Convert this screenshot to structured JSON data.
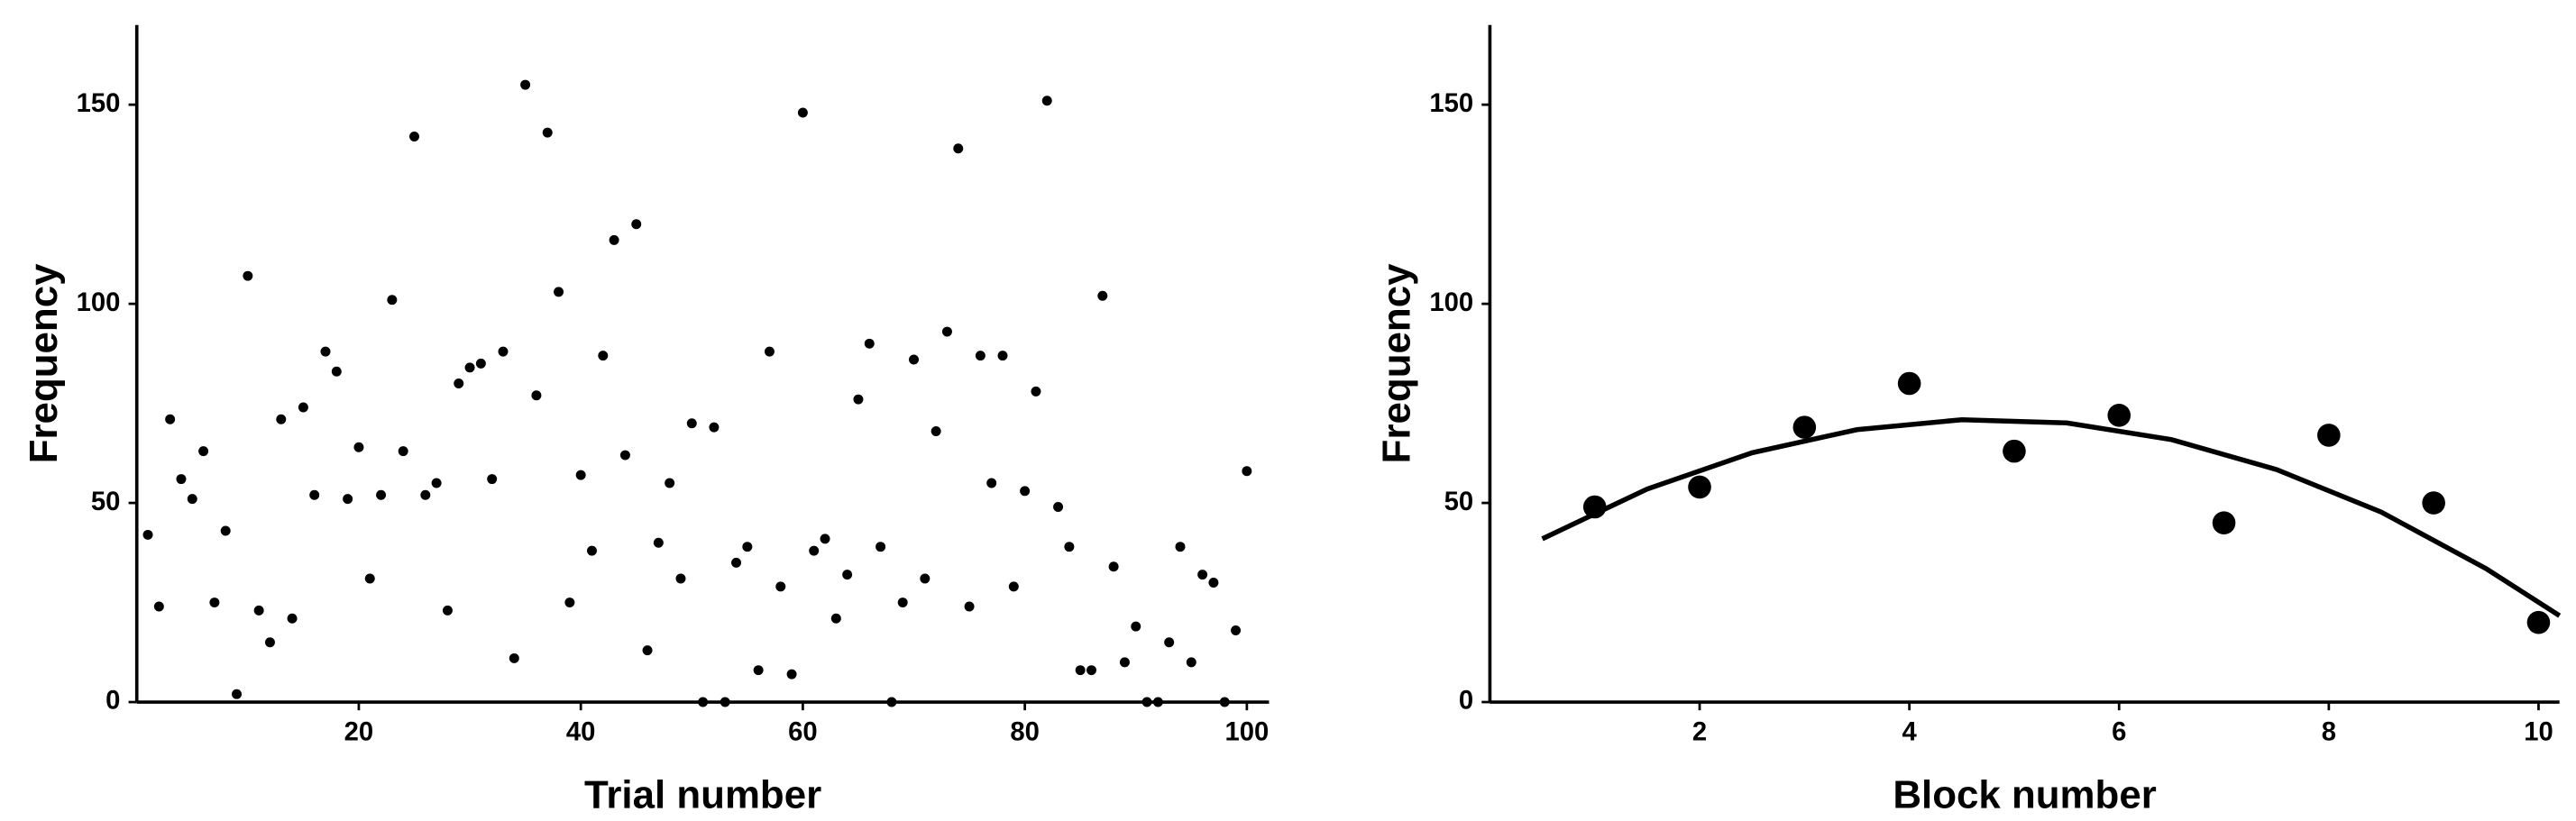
{
  "chart_data": [
    {
      "type": "scatter",
      "xlabel": "Trial number",
      "ylabel": "Frequency",
      "xlim": [
        0,
        102
      ],
      "ylim": [
        0,
        170
      ],
      "xticks": [
        20,
        40,
        60,
        80,
        100
      ],
      "yticks": [
        0,
        50,
        100,
        150
      ],
      "series": [
        {
          "style": "points",
          "color": "#000000",
          "x": [
            1,
            2,
            3,
            4,
            5,
            6,
            7,
            8,
            9,
            10,
            11,
            12,
            13,
            14,
            15,
            16,
            17,
            18,
            19,
            20,
            21,
            22,
            23,
            24,
            25,
            26,
            27,
            28,
            29,
            30,
            31,
            32,
            33,
            34,
            35,
            36,
            37,
            38,
            39,
            40,
            41,
            42,
            43,
            44,
            45,
            46,
            47,
            48,
            49,
            50,
            51,
            52,
            53,
            54,
            55,
            56,
            57,
            58,
            59,
            60,
            61,
            62,
            63,
            64,
            65,
            66,
            67,
            68,
            69,
            70,
            71,
            72,
            73,
            74,
            75,
            76,
            77,
            78,
            79,
            80,
            81,
            82,
            83,
            84,
            85,
            86,
            87,
            88,
            89,
            90,
            91,
            92,
            93,
            94,
            95,
            96,
            97,
            98,
            99,
            100
          ],
          "values": [
            42,
            24,
            71,
            56,
            51,
            63,
            25,
            43,
            2,
            107,
            23,
            15,
            71,
            21,
            74,
            52,
            88,
            83,
            51,
            64,
            31,
            52,
            101,
            63,
            142,
            52,
            55,
            23,
            80,
            84,
            85,
            56,
            88,
            11,
            155,
            77,
            143,
            103,
            25,
            57,
            38,
            87,
            116,
            62,
            120,
            13,
            40,
            55,
            31,
            70,
            0,
            69,
            0,
            35,
            39,
            8,
            88,
            29,
            7,
            148,
            38,
            41,
            21,
            32,
            76,
            90,
            39,
            0,
            25,
            86,
            31,
            68,
            93,
            139,
            24,
            87,
            55,
            87,
            29,
            53,
            78,
            151,
            49,
            39,
            8,
            8,
            102,
            34,
            10,
            19,
            0,
            0,
            15,
            39,
            10,
            32,
            30,
            0,
            18,
            58
          ]
        }
      ]
    },
    {
      "type": "scatter",
      "xlabel": "Block number",
      "ylabel": "Frequency",
      "xlim": [
        0,
        10.2
      ],
      "ylim": [
        0,
        170
      ],
      "xticks": [
        2,
        4,
        6,
        8,
        10
      ],
      "yticks": [
        0,
        50,
        100,
        150
      ],
      "series": [
        {
          "style": "points",
          "color": "#000000",
          "x": [
            1,
            2,
            3,
            4,
            5,
            6,
            7,
            8,
            9,
            10
          ],
          "values": [
            49,
            54,
            69,
            80,
            63,
            72,
            45,
            67,
            50,
            20
          ]
        },
        {
          "style": "line",
          "color": "#000000",
          "x": [
            0.5,
            1.5,
            2.5,
            3.5,
            4.5,
            5.5,
            6.5,
            7.5,
            8.5,
            9.5,
            10.2
          ],
          "values": [
            41,
            53.5,
            62.6,
            68.4,
            70.9,
            70.1,
            65.9,
            58.4,
            47.7,
            33.5,
            21.7
          ]
        }
      ]
    }
  ]
}
